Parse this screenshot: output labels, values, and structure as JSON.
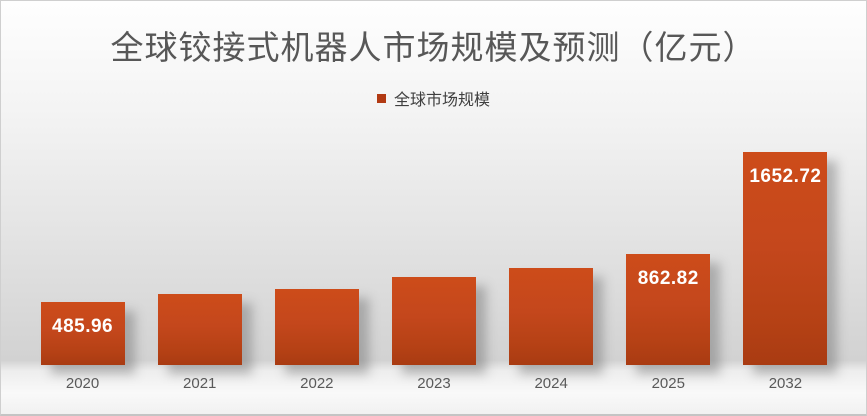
{
  "title": {
    "text": "全球铰接式机器人市场规模及预测（亿元）"
  },
  "legend": {
    "label": "全球市场规模",
    "marker_color": "#b23a13"
  },
  "colors": {
    "bar_top": "#cd4c1a",
    "bar_bottom": "#a93b12",
    "data_label_text": "#ffffff",
    "axis_text": "#595959",
    "title_text": "#575757"
  },
  "chart_data": {
    "type": "bar",
    "title": "全球铰接式机器人市场规模及预测（亿元）",
    "unit": "亿元",
    "legend_entries": [
      "全球市场规模"
    ],
    "legend_position": "top",
    "grid": false,
    "y_axis_visible": false,
    "categories": [
      "2020",
      "2021",
      "2022",
      "2023",
      "2024",
      "2025",
      "2032"
    ],
    "values": [
      485.96,
      550,
      592,
      683,
      752,
      862.82,
      1652.72
    ],
    "values_estimated": [
      false,
      true,
      true,
      true,
      true,
      false,
      false
    ],
    "data_labels": [
      "485.96",
      "",
      "",
      "",
      "",
      "862.82",
      "1652.72"
    ],
    "ylim": [
      0,
      1700
    ]
  }
}
